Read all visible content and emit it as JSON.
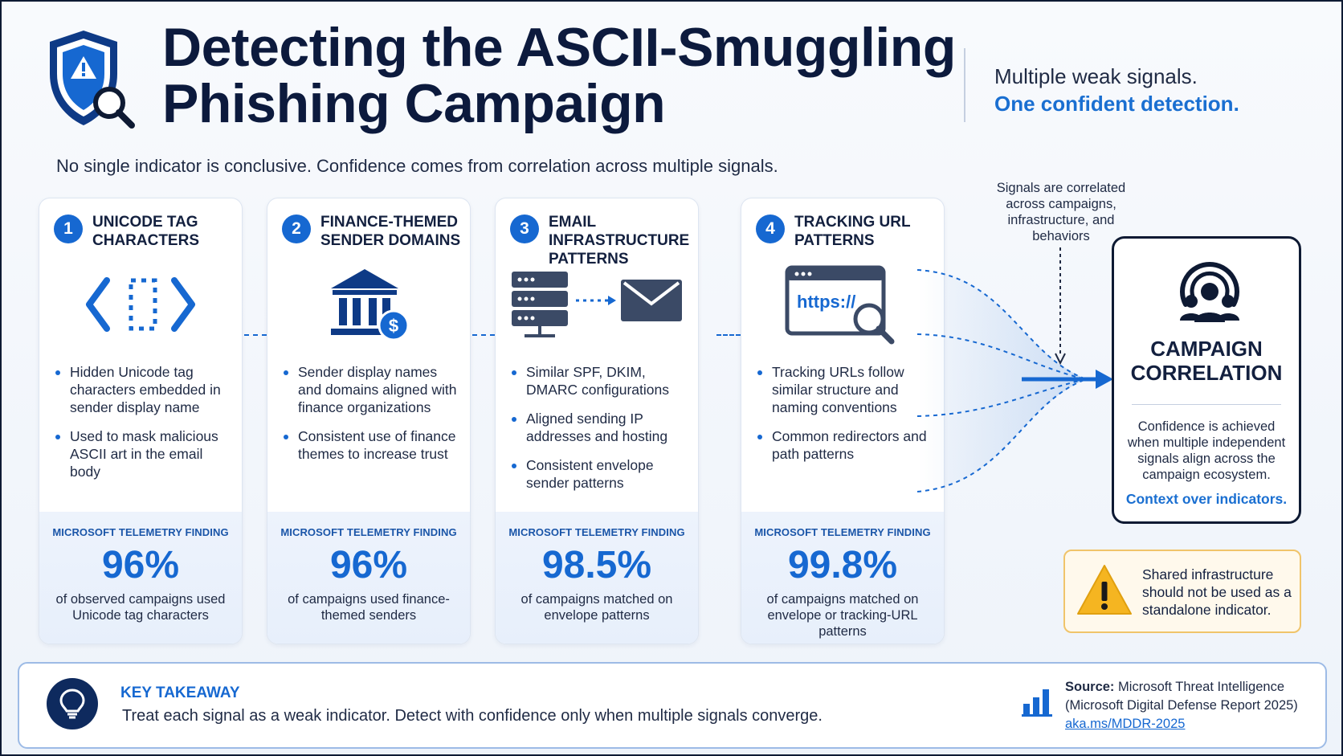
{
  "header": {
    "title_line1": "Detecting the ASCII-Smuggling",
    "title_line2": "Phishing Campaign",
    "tagline_line1": "Multiple weak signals.",
    "tagline_line2": "One confident detection.",
    "subtitle": "No single indicator is conclusive. Confidence comes from correlation across multiple signals."
  },
  "signals": [
    {
      "number": "1",
      "title": "UNICODE TAG CHARACTERS",
      "icon": "code-brackets-icon",
      "bullets": [
        "Hidden Unicode tag characters embedded in sender display name",
        "Used to mask malicious ASCII art in the email body"
      ],
      "finding_label": "MICROSOFT TELEMETRY FINDING",
      "finding_value": "96%",
      "finding_desc": "of observed campaigns used Unicode tag characters"
    },
    {
      "number": "2",
      "title": "FINANCE-THEMED SENDER DOMAINS",
      "icon": "bank-dollar-icon",
      "bullets": [
        "Sender display names and domains aligned with finance organizations",
        "Consistent use of finance themes to increase trust"
      ],
      "finding_label": "MICROSOFT TELEMETRY FINDING",
      "finding_value": "96%",
      "finding_desc": "of campaigns used finance-themed senders"
    },
    {
      "number": "3",
      "title": "EMAIL INFRASTRUCTURE PATTERNS",
      "icon": "server-to-envelope-icon",
      "bullets": [
        "Similar SPF, DKIM, DMARC configurations",
        "Aligned sending IP addresses and hosting",
        "Consistent envelope sender patterns"
      ],
      "finding_label": "MICROSOFT TELEMETRY FINDING",
      "finding_value": "98.5%",
      "finding_desc": "of campaigns matched on envelope patterns"
    },
    {
      "number": "4",
      "title": "TRACKING URL PATTERNS",
      "icon": "browser-url-search-icon",
      "url_text": "https://",
      "bullets": [
        "Tracking URLs follow similar structure and naming conventions",
        "Common redirectors and path patterns"
      ],
      "finding_label": "MICROSOFT TELEMETRY FINDING",
      "finding_value": "99.8%",
      "finding_desc": "of campaigns matched on envelope or tracking-URL patterns"
    }
  ],
  "correlation": {
    "note": "Signals are correlated across campaigns, infrastructure, and behaviors",
    "title": "CAMPAIGN CORRELATION",
    "description": "Confidence is achieved when multiple independent signals align across the campaign ecosystem.",
    "footer": "Context over indicators."
  },
  "warning": {
    "text": "Shared infrastructure should not be used as a standalone indicator."
  },
  "takeaway": {
    "label": "KEY TAKEAWAY",
    "text": "Treat each signal as a weak indicator. Detect with confidence only when multiple signals converge."
  },
  "source": {
    "label": "Source:",
    "line1": "Microsoft Threat Intelligence",
    "line2": "(Microsoft Digital Defense Report 2025)",
    "link": "aka.ms/MDDR-2025"
  },
  "colors": {
    "primary_blue": "#1668d1",
    "navy": "#0e1a33",
    "warning_amber": "#f5b521"
  }
}
